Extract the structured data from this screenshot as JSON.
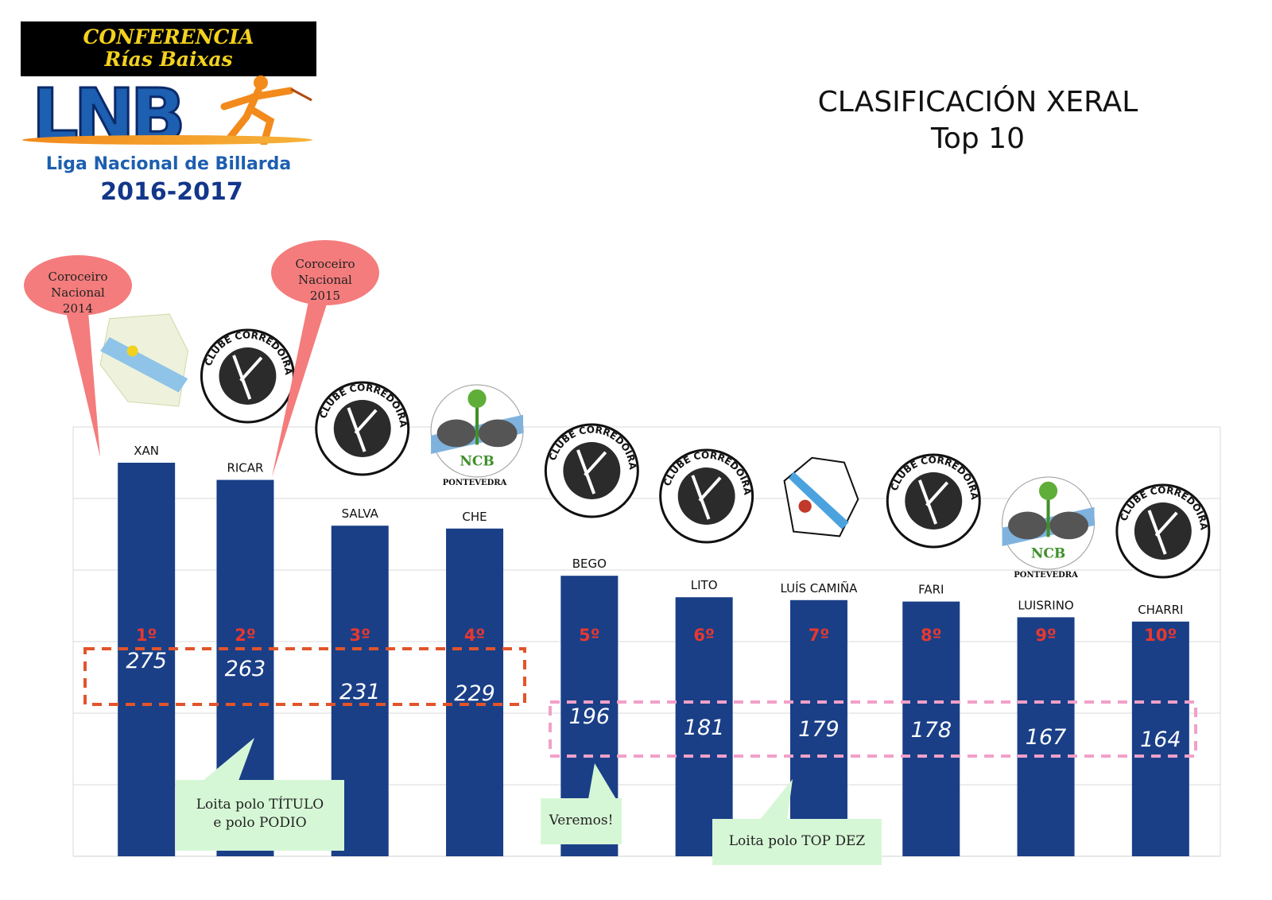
{
  "logo": {
    "banner_line1": "CONFERENCIA",
    "banner_line2": "Rías Baixas",
    "brand": "LNB",
    "league": "Liga Nacional de Billarda",
    "season": "2016-2017"
  },
  "title": {
    "line1": "CLASIFICACIÓN XERAL",
    "line2": "Top 10"
  },
  "colors": {
    "bar": "#1a3f87",
    "rank": "#e8382f",
    "podium_box": "#e2542a",
    "topten_box": "#f2a0c8",
    "note_bg": "#d6f7d6",
    "bubble_bg": "#f47c7c"
  },
  "chart_data": {
    "type": "bar",
    "categories": [
      "XAN",
      "RICAR",
      "SALVA",
      "CHE",
      "BEGO",
      "LITO",
      "LUÍS CAMIÑA",
      "FARI",
      "LUISRINO",
      "CHARRI"
    ],
    "values": [
      275,
      263,
      231,
      229,
      196,
      181,
      179,
      178,
      167,
      164
    ],
    "ranks": [
      "1º",
      "2º",
      "3º",
      "4º",
      "5º",
      "6º",
      "7º",
      "8º",
      "9º",
      "10º"
    ],
    "club_icons": [
      "lia-e-forza-icon",
      "clube-corredoiras-icon",
      "clube-corredoiras-icon",
      "ncb-pontevedra-icon",
      "clube-corredoiras-icon",
      "clube-corredoiras-icon",
      "marin-lnb-icon",
      "clube-corredoiras-icon",
      "ncb-pontevedra-icon",
      "clube-corredoiras-icon"
    ],
    "club_captions": [
      "",
      "",
      "",
      "PONTEVEDRA",
      "",
      "",
      "",
      "",
      "PONTEVEDRA",
      ""
    ],
    "ylim": [
      0,
      300
    ],
    "grid": true,
    "title": "CLASIFICACIÓN XERAL Top 10"
  },
  "annotations": {
    "bubble_2014": [
      "Coroceiro Nacional",
      "2014"
    ],
    "bubble_2015": [
      "Coroceiro Nacional",
      "2015"
    ],
    "note_title": [
      "Loita polo TÍTULO",
      "e polo PODIO"
    ],
    "note_veremos": "Veremos!",
    "note_topdez": "Loita polo TOP DEZ"
  }
}
